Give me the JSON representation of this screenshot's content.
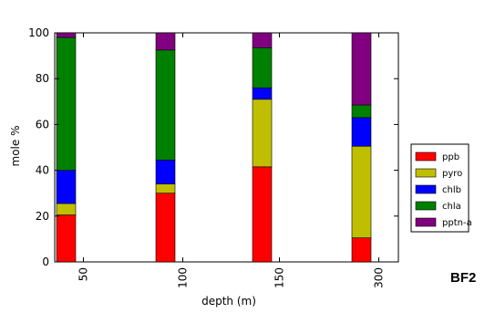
{
  "panel_label": "BF2",
  "chart_data": {
    "type": "bar",
    "stacked": true,
    "categories": [
      "50",
      "100",
      "150",
      "300"
    ],
    "xlabel": "depth (m)",
    "ylabel": "mole %",
    "ylim": [
      0,
      100
    ],
    "yticks": [
      "0",
      "20",
      "40",
      "60",
      "80",
      "100"
    ],
    "grid": false,
    "legend_position": "right",
    "series": [
      {
        "name": "ppb",
        "color": "#ff0000",
        "values": [
          20.5,
          30.0,
          41.5,
          10.5
        ]
      },
      {
        "name": "pyro",
        "color": "#bfbf00",
        "values": [
          5.0,
          4.0,
          29.5,
          40.0
        ]
      },
      {
        "name": "chlb",
        "color": "#0000ff",
        "values": [
          14.5,
          10.5,
          5.0,
          12.5
        ]
      },
      {
        "name": "chla",
        "color": "#008000",
        "values": [
          58.0,
          48.0,
          17.5,
          5.5
        ]
      },
      {
        "name": "pptn-a",
        "color": "#800080",
        "values": [
          2.0,
          7.5,
          6.5,
          31.5
        ]
      }
    ]
  }
}
